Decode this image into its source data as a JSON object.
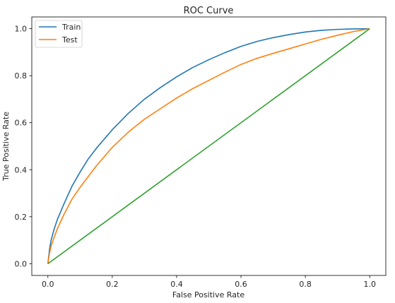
{
  "chart_data": {
    "type": "line",
    "title": "ROC Curve",
    "xlabel": "False Positive Rate",
    "ylabel": "True Positive Rate",
    "xlim": [
      -0.05,
      1.05
    ],
    "ylim": [
      -0.05,
      1.05
    ],
    "xticks": [
      0.0,
      0.2,
      0.4,
      0.6,
      0.8,
      1.0
    ],
    "xtick_labels": [
      "0.0",
      "0.2",
      "0.4",
      "0.6",
      "0.8",
      "1.0"
    ],
    "yticks": [
      0.0,
      0.2,
      0.4,
      0.6,
      0.8,
      1.0
    ],
    "ytick_labels": [
      "0.0",
      "0.2",
      "0.4",
      "0.6",
      "0.8",
      "1.0"
    ],
    "grid": false,
    "legend": "top-left",
    "series": [
      {
        "name": "Train",
        "color": "#1f77b4",
        "x": [
          0.0,
          0.005,
          0.01,
          0.02,
          0.03,
          0.05,
          0.075,
          0.1,
          0.125,
          0.15,
          0.2,
          0.25,
          0.3,
          0.35,
          0.4,
          0.45,
          0.5,
          0.55,
          0.6,
          0.65,
          0.7,
          0.75,
          0.8,
          0.85,
          0.9,
          0.95,
          1.0
        ],
        "y": [
          0.0,
          0.06,
          0.1,
          0.15,
          0.19,
          0.255,
          0.33,
          0.39,
          0.445,
          0.49,
          0.57,
          0.64,
          0.7,
          0.75,
          0.795,
          0.835,
          0.868,
          0.898,
          0.925,
          0.946,
          0.962,
          0.975,
          0.986,
          0.993,
          0.997,
          0.999,
          1.0
        ],
        "legend_label": "Train"
      },
      {
        "name": "Test",
        "color": "#ff7f0e",
        "x": [
          0.0,
          0.005,
          0.01,
          0.02,
          0.03,
          0.05,
          0.075,
          0.1,
          0.125,
          0.15,
          0.2,
          0.25,
          0.3,
          0.35,
          0.4,
          0.45,
          0.5,
          0.55,
          0.6,
          0.65,
          0.7,
          0.75,
          0.8,
          0.85,
          0.9,
          0.95,
          1.0
        ],
        "y": [
          0.0,
          0.045,
          0.075,
          0.115,
          0.15,
          0.21,
          0.275,
          0.325,
          0.37,
          0.415,
          0.495,
          0.56,
          0.615,
          0.66,
          0.705,
          0.745,
          0.78,
          0.815,
          0.848,
          0.874,
          0.895,
          0.915,
          0.935,
          0.955,
          0.972,
          0.988,
          1.0
        ],
        "legend_label": "Test"
      },
      {
        "color": "#2ca02c",
        "x": [
          0.0,
          1.0
        ],
        "y": [
          0.0,
          1.0
        ]
      }
    ]
  }
}
